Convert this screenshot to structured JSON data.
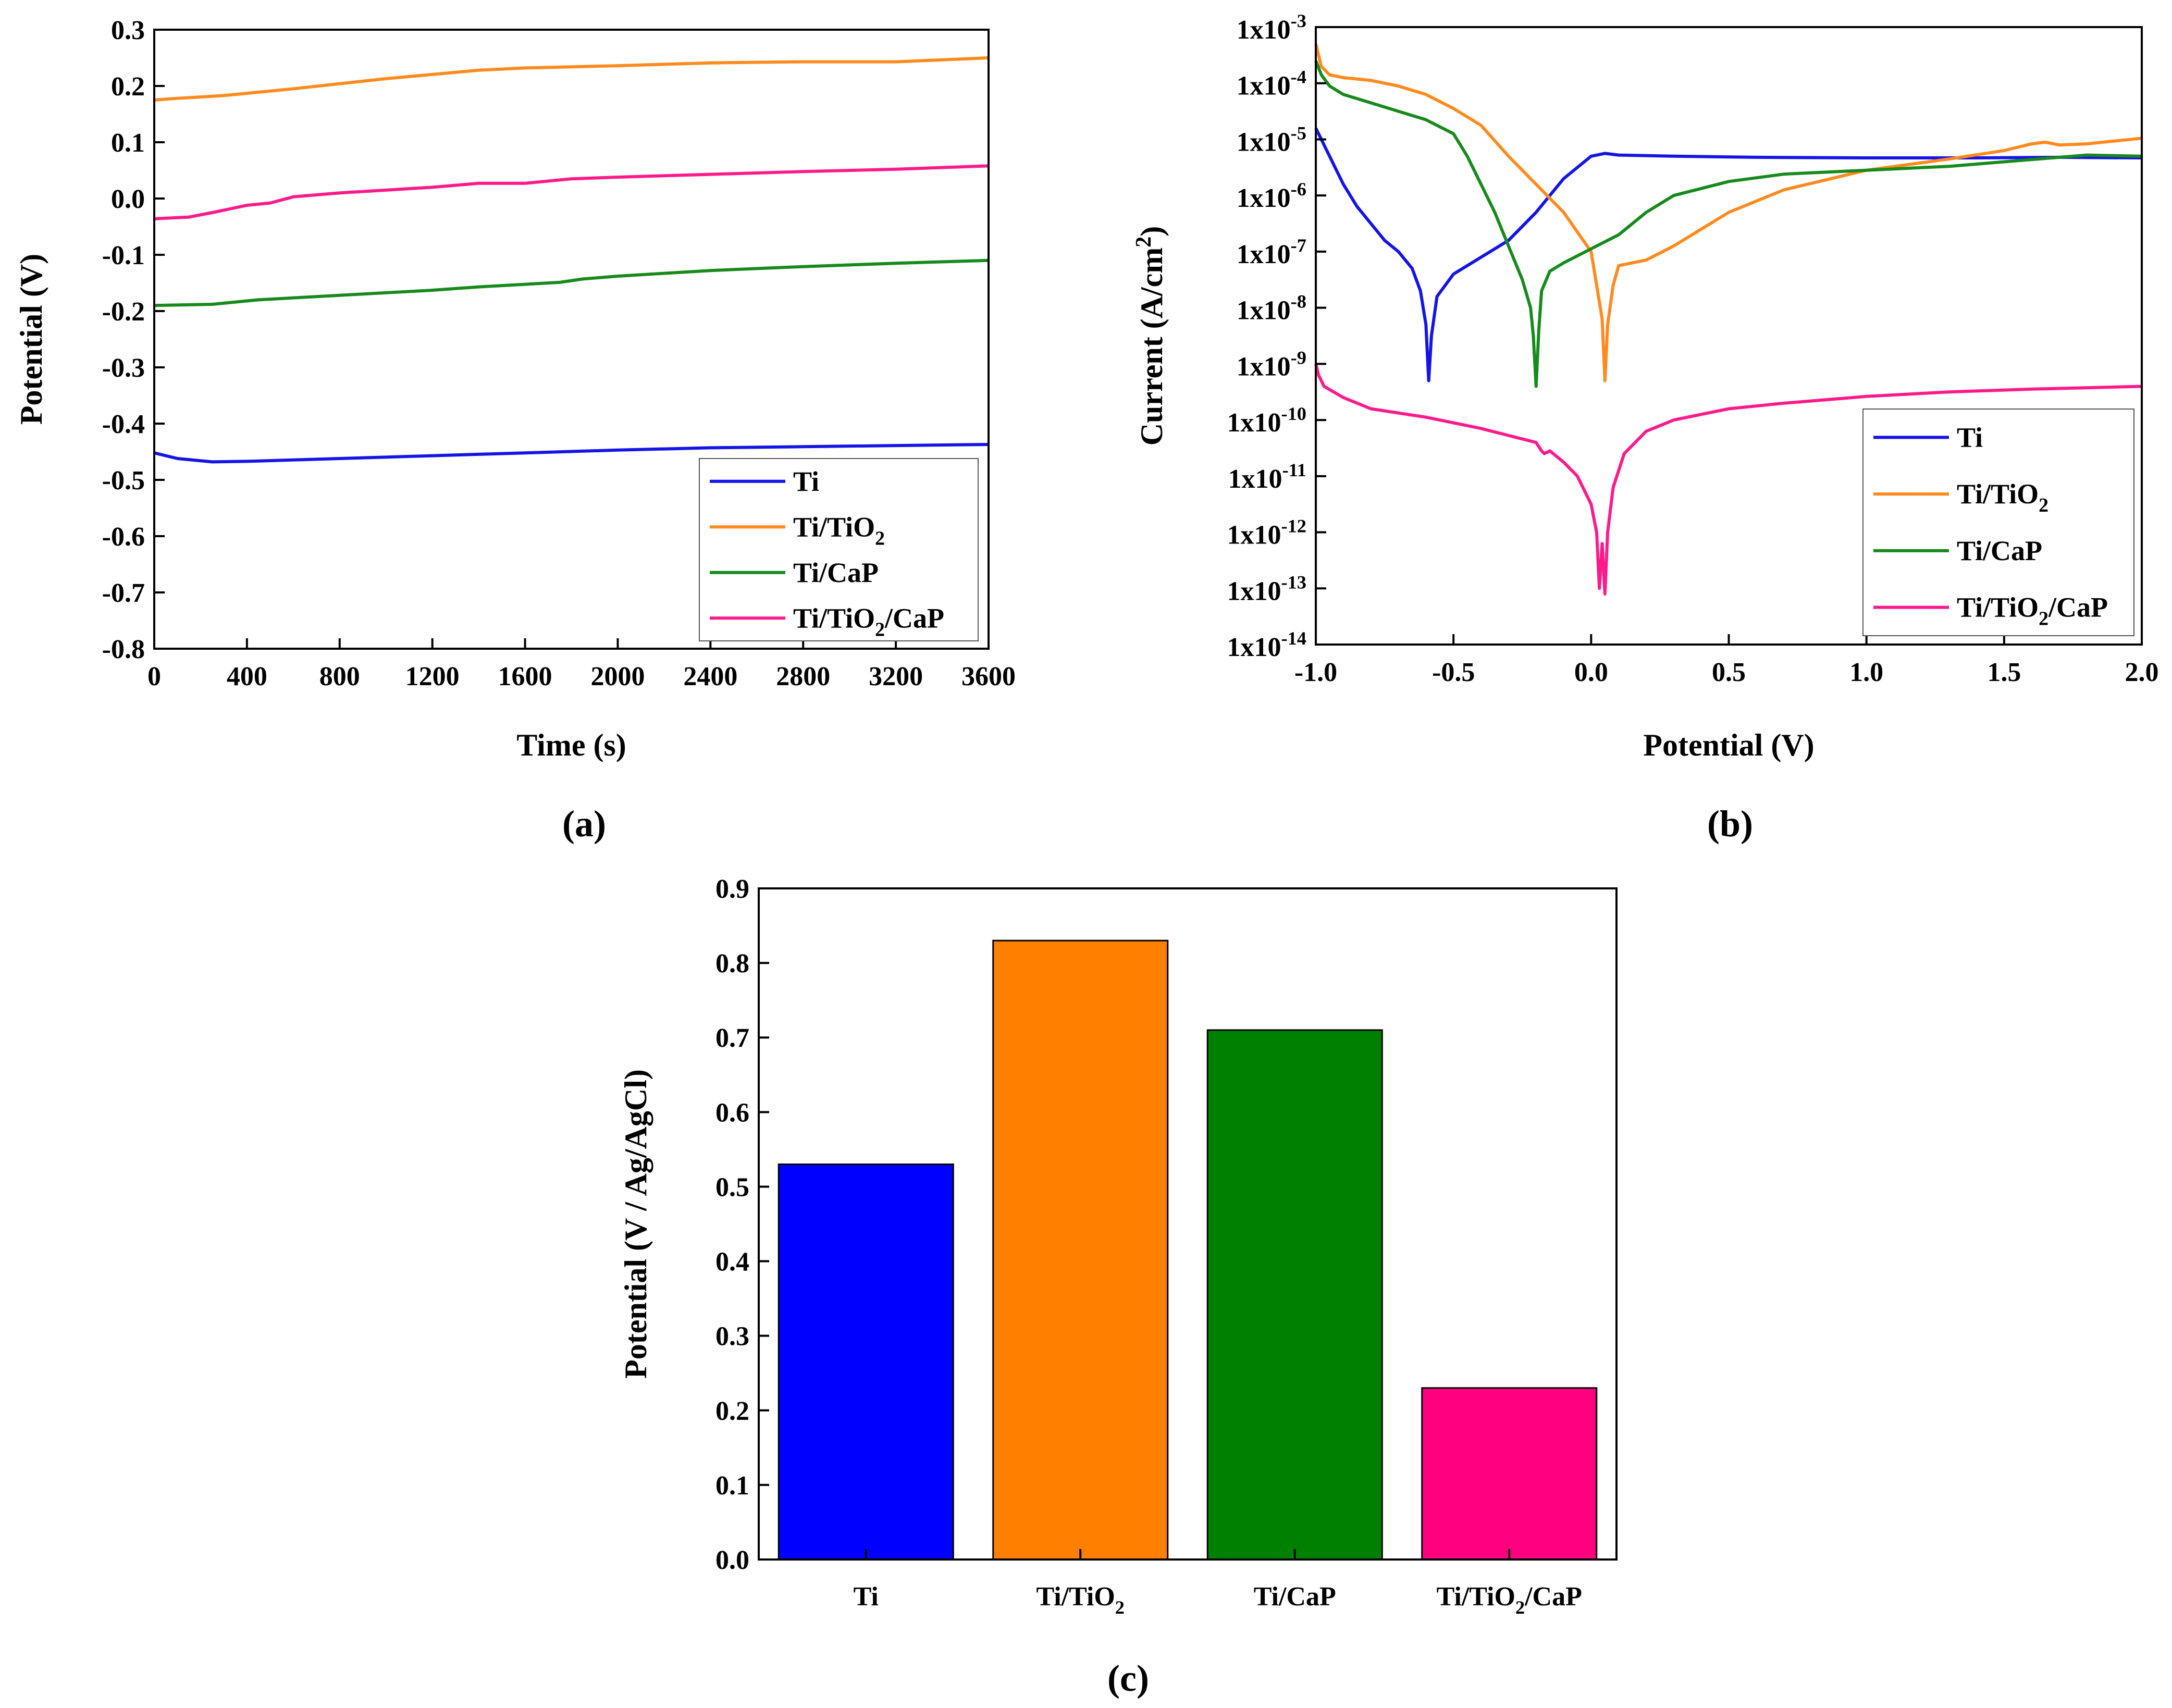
{
  "colors": {
    "Ti": "#1414e6",
    "Ti/TiO2": "#ff8a1e",
    "Ti/CaP": "#178a1c",
    "Ti/TiO2/CaP": "#ff1a8c",
    "bar_Ti": "#0000ff",
    "bar_TiO2": "#ff8000",
    "bar_CaP": "#008000",
    "bar_TiO2CaP": "#ff0080"
  },
  "chart_data": [
    {
      "id": "a",
      "panel_label": "(a)",
      "type": "line",
      "title": "",
      "xlabel": "Time (s)",
      "ylabel": "Potential (V)",
      "xlim": [
        0,
        3600
      ],
      "ylim": [
        -0.8,
        0.3
      ],
      "xticks": [
        "0",
        "400",
        "800",
        "1200",
        "1600",
        "2000",
        "2400",
        "2800",
        "3200",
        "3600"
      ],
      "yticks": [
        "-0.8",
        "-0.7",
        "-0.6",
        "-0.5",
        "-0.4",
        "-0.3",
        "-0.2",
        "-0.1",
        "0.0",
        "0.1",
        "0.2",
        "0.3"
      ],
      "grid": false,
      "legend_position": "bottom-right",
      "series": [
        {
          "name": "Ti",
          "color_key": "Ti",
          "x": [
            0,
            100,
            250,
            400,
            800,
            1200,
            1600,
            2000,
            2400,
            2800,
            3200,
            3600
          ],
          "y": [
            -0.452,
            -0.462,
            -0.468,
            -0.467,
            -0.462,
            -0.457,
            -0.452,
            -0.447,
            -0.443,
            -0.441,
            -0.439,
            -0.437
          ]
        },
        {
          "name": "Ti/TiO2",
          "color_key": "Ti/TiO2",
          "x": [
            0,
            100,
            300,
            600,
            1000,
            1400,
            1600,
            2000,
            2400,
            2800,
            3200,
            3600
          ],
          "y": [
            0.175,
            0.178,
            0.183,
            0.195,
            0.213,
            0.228,
            0.232,
            0.236,
            0.241,
            0.243,
            0.243,
            0.25
          ]
        },
        {
          "name": "Ti/CaP",
          "color_key": "Ti/CaP",
          "x": [
            0,
            250,
            450,
            800,
            1200,
            1400,
            1750,
            1850,
            2000,
            2400,
            2800,
            3200,
            3600
          ],
          "y": [
            -0.19,
            -0.188,
            -0.18,
            -0.172,
            -0.163,
            -0.157,
            -0.149,
            -0.143,
            -0.138,
            -0.128,
            -0.121,
            -0.115,
            -0.11
          ]
        },
        {
          "name": "Ti/TiO2/CaP",
          "color_key": "Ti/TiO2/CaP",
          "x": [
            0,
            150,
            250,
            400,
            500,
            600,
            800,
            1200,
            1400,
            1600,
            1800,
            2000,
            2400,
            2800,
            3200,
            3600
          ],
          "y": [
            -0.036,
            -0.033,
            -0.025,
            -0.012,
            -0.008,
            0.003,
            0.01,
            0.02,
            0.027,
            0.027,
            0.035,
            0.038,
            0.043,
            0.048,
            0.052,
            0.058
          ]
        }
      ],
      "legend": {
        "entries": [
          {
            "main": "Ti",
            "sub": "",
            "tail": "",
            "color_key": "Ti"
          },
          {
            "main": "Ti/TiO",
            "sub": "2",
            "tail": "",
            "color_key": "Ti/TiO2"
          },
          {
            "main": "Ti/CaP",
            "sub": "",
            "tail": "",
            "color_key": "Ti/CaP"
          },
          {
            "main": "Ti/TiO",
            "sub": "2",
            "tail": "/CaP",
            "color_key": "Ti/TiO2/CaP"
          }
        ]
      }
    },
    {
      "id": "b",
      "panel_label": "(b)",
      "type": "line",
      "title": "",
      "xlabel": "Potential (V)",
      "ylabel_main": "Current (A/cm",
      "ylabel_sup": "2",
      "ylabel_tail": ")",
      "yscale": "log",
      "xlim": [
        -1.0,
        2.0
      ],
      "ylim_exp": [
        -14,
        -3
      ],
      "xticks": [
        "-1.0",
        "-0.5",
        "0.0",
        "0.5",
        "1.0",
        "1.5",
        "2.0"
      ],
      "ytick_base": "1x10",
      "ytick_exps": [
        "-14",
        "-13",
        "-12",
        "-11",
        "-10",
        "-9",
        "-8",
        "-7",
        "-6",
        "-5",
        "-4",
        "-3"
      ],
      "grid": false,
      "legend_position": "bottom-right",
      "series": [
        {
          "name": "Ti",
          "color_key": "Ti",
          "x": [
            -1.0,
            -0.95,
            -0.9,
            -0.85,
            -0.8,
            -0.75,
            -0.7,
            -0.65,
            -0.62,
            -0.6,
            -0.59,
            -0.58,
            -0.56,
            -0.5,
            -0.4,
            -0.3,
            -0.2,
            -0.1,
            0.0,
            0.05,
            0.1,
            0.3,
            0.6,
            1.0,
            1.4,
            1.7,
            2.0
          ],
          "y": [
            -4.8,
            -5.3,
            -5.8,
            -6.2,
            -6.5,
            -6.8,
            -7.0,
            -7.3,
            -7.7,
            -8.3,
            -9.3,
            -8.5,
            -7.8,
            -7.4,
            -7.1,
            -6.8,
            -6.3,
            -5.7,
            -5.3,
            -5.25,
            -5.28,
            -5.3,
            -5.32,
            -5.33,
            -5.33,
            -5.32,
            -5.33
          ]
        },
        {
          "name": "Ti/TiO2",
          "color_key": "Ti/TiO2",
          "x": [
            -1.0,
            -0.98,
            -0.95,
            -0.9,
            -0.8,
            -0.7,
            -0.6,
            -0.5,
            -0.4,
            -0.3,
            -0.2,
            -0.1,
            0.0,
            0.02,
            0.04,
            0.05,
            0.06,
            0.08,
            0.1,
            0.2,
            0.3,
            0.5,
            0.7,
            1.0,
            1.3,
            1.5,
            1.6,
            1.65,
            1.7,
            1.8,
            2.0
          ],
          "y": [
            -3.3,
            -3.7,
            -3.85,
            -3.9,
            -3.95,
            -4.05,
            -4.2,
            -4.45,
            -4.75,
            -5.3,
            -5.8,
            -6.3,
            -7.0,
            -7.6,
            -8.2,
            -9.3,
            -8.3,
            -7.6,
            -7.25,
            -7.15,
            -6.9,
            -6.3,
            -5.9,
            -5.55,
            -5.35,
            -5.2,
            -5.08,
            -5.05,
            -5.1,
            -5.08,
            -4.98
          ]
        },
        {
          "name": "Ti/CaP",
          "color_key": "Ti/CaP",
          "x": [
            -1.0,
            -0.98,
            -0.95,
            -0.9,
            -0.8,
            -0.7,
            -0.6,
            -0.5,
            -0.45,
            -0.4,
            -0.35,
            -0.3,
            -0.25,
            -0.22,
            -0.21,
            -0.2,
            -0.19,
            -0.18,
            -0.15,
            -0.1,
            0.0,
            0.1,
            0.2,
            0.3,
            0.5,
            0.7,
            1.0,
            1.3,
            1.5,
            1.8,
            2.0
          ],
          "y": [
            -3.6,
            -3.85,
            -4.05,
            -4.2,
            -4.35,
            -4.5,
            -4.65,
            -4.9,
            -5.3,
            -5.8,
            -6.3,
            -6.9,
            -7.5,
            -8.0,
            -8.5,
            -9.4,
            -8.4,
            -7.7,
            -7.35,
            -7.2,
            -6.95,
            -6.7,
            -6.3,
            -6.0,
            -5.75,
            -5.62,
            -5.55,
            -5.48,
            -5.4,
            -5.28,
            -5.3
          ]
        },
        {
          "name": "Ti/TiO2/CaP",
          "color_key": "Ti/TiO2/CaP",
          "x": [
            -1.0,
            -0.99,
            -0.97,
            -0.9,
            -0.8,
            -0.6,
            -0.4,
            -0.2,
            -0.18,
            -0.17,
            -0.15,
            -0.1,
            -0.05,
            0.0,
            0.02,
            0.03,
            0.04,
            0.05,
            0.06,
            0.08,
            0.12,
            0.2,
            0.3,
            0.5,
            0.7,
            1.0,
            1.3,
            1.6,
            2.0
          ],
          "y": [
            -9.0,
            -9.2,
            -9.4,
            -9.6,
            -9.8,
            -9.95,
            -10.15,
            -10.4,
            -10.55,
            -10.6,
            -10.55,
            -10.75,
            -11.0,
            -11.5,
            -12.0,
            -13.0,
            -12.2,
            -13.1,
            -12.0,
            -11.2,
            -10.6,
            -10.2,
            -10.0,
            -9.8,
            -9.7,
            -9.58,
            -9.5,
            -9.45,
            -9.4
          ]
        }
      ],
      "legend": {
        "entries": [
          {
            "main": "Ti",
            "sub": "",
            "tail": "",
            "color_key": "Ti"
          },
          {
            "main": "Ti/TiO",
            "sub": "2",
            "tail": "",
            "color_key": "Ti/TiO2"
          },
          {
            "main": "Ti/CaP",
            "sub": "",
            "tail": "",
            "color_key": "Ti/CaP"
          },
          {
            "main": "Ti/TiO",
            "sub": "2",
            "tail": "/CaP",
            "color_key": "Ti/TiO2/CaP"
          }
        ]
      }
    },
    {
      "id": "c",
      "panel_label": "(c)",
      "type": "bar",
      "title": "",
      "xlabel": "",
      "ylabel": "Potential (V / Ag/AgCl)",
      "ylim": [
        0,
        0.9
      ],
      "yticks": [
        "0.0",
        "0.1",
        "0.2",
        "0.3",
        "0.4",
        "0.5",
        "0.6",
        "0.7",
        "0.8",
        "0.9"
      ],
      "grid": false,
      "categories": [
        {
          "main": "Ti",
          "sub": "",
          "tail": ""
        },
        {
          "main": "Ti/TiO",
          "sub": "2",
          "tail": ""
        },
        {
          "main": "Ti/CaP",
          "sub": "",
          "tail": ""
        },
        {
          "main": "Ti/TiO",
          "sub": "2",
          "tail": "/CaP"
        }
      ],
      "values": [
        0.53,
        0.83,
        0.71,
        0.23
      ],
      "bar_color_keys": [
        "bar_Ti",
        "bar_TiO2",
        "bar_CaP",
        "bar_TiO2CaP"
      ]
    }
  ]
}
